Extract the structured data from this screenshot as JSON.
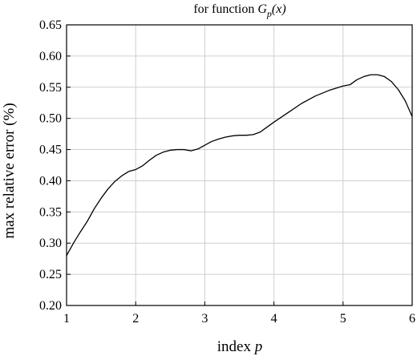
{
  "chart_data": {
    "type": "line",
    "title": {
      "prefix": "for function ",
      "symbol": "G",
      "subscript": "p",
      "suffix": "(x)"
    },
    "xlabel": {
      "text": "index ",
      "variable": "p"
    },
    "ylabel": "max relative error (%)",
    "xlim": [
      1,
      6
    ],
    "ylim": [
      0.2,
      0.65
    ],
    "xticks": [
      "1",
      "2",
      "3",
      "4",
      "5",
      "6"
    ],
    "yticks": [
      "0.20",
      "0.25",
      "0.30",
      "0.35",
      "0.40",
      "0.45",
      "0.50",
      "0.55",
      "0.60",
      "0.65"
    ],
    "grid": true,
    "series": [
      {
        "x": [
          1.0,
          1.1,
          1.2,
          1.3,
          1.4,
          1.5,
          1.6,
          1.7,
          1.8,
          1.9,
          2.0,
          2.1,
          2.2,
          2.3,
          2.4,
          2.5,
          2.6,
          2.7,
          2.8,
          2.9,
          3.0,
          3.1,
          3.2,
          3.3,
          3.4,
          3.5,
          3.6,
          3.7,
          3.8,
          3.9,
          4.0,
          4.2,
          4.4,
          4.6,
          4.8,
          5.0,
          5.1,
          5.2,
          5.3,
          5.4,
          5.5,
          5.6,
          5.7,
          5.8,
          5.9,
          6.0
        ],
        "y": [
          0.28,
          0.3,
          0.318,
          0.335,
          0.355,
          0.372,
          0.387,
          0.399,
          0.408,
          0.415,
          0.418,
          0.424,
          0.433,
          0.441,
          0.446,
          0.449,
          0.45,
          0.45,
          0.448,
          0.451,
          0.457,
          0.463,
          0.467,
          0.47,
          0.472,
          0.473,
          0.473,
          0.474,
          0.478,
          0.486,
          0.494,
          0.509,
          0.524,
          0.536,
          0.545,
          0.552,
          0.554,
          0.562,
          0.567,
          0.57,
          0.57,
          0.567,
          0.559,
          0.546,
          0.528,
          0.503
        ]
      }
    ]
  },
  "style": {
    "line_color": "#000000",
    "grid_color": "#cfcfcf",
    "axis_color": "#000000"
  }
}
